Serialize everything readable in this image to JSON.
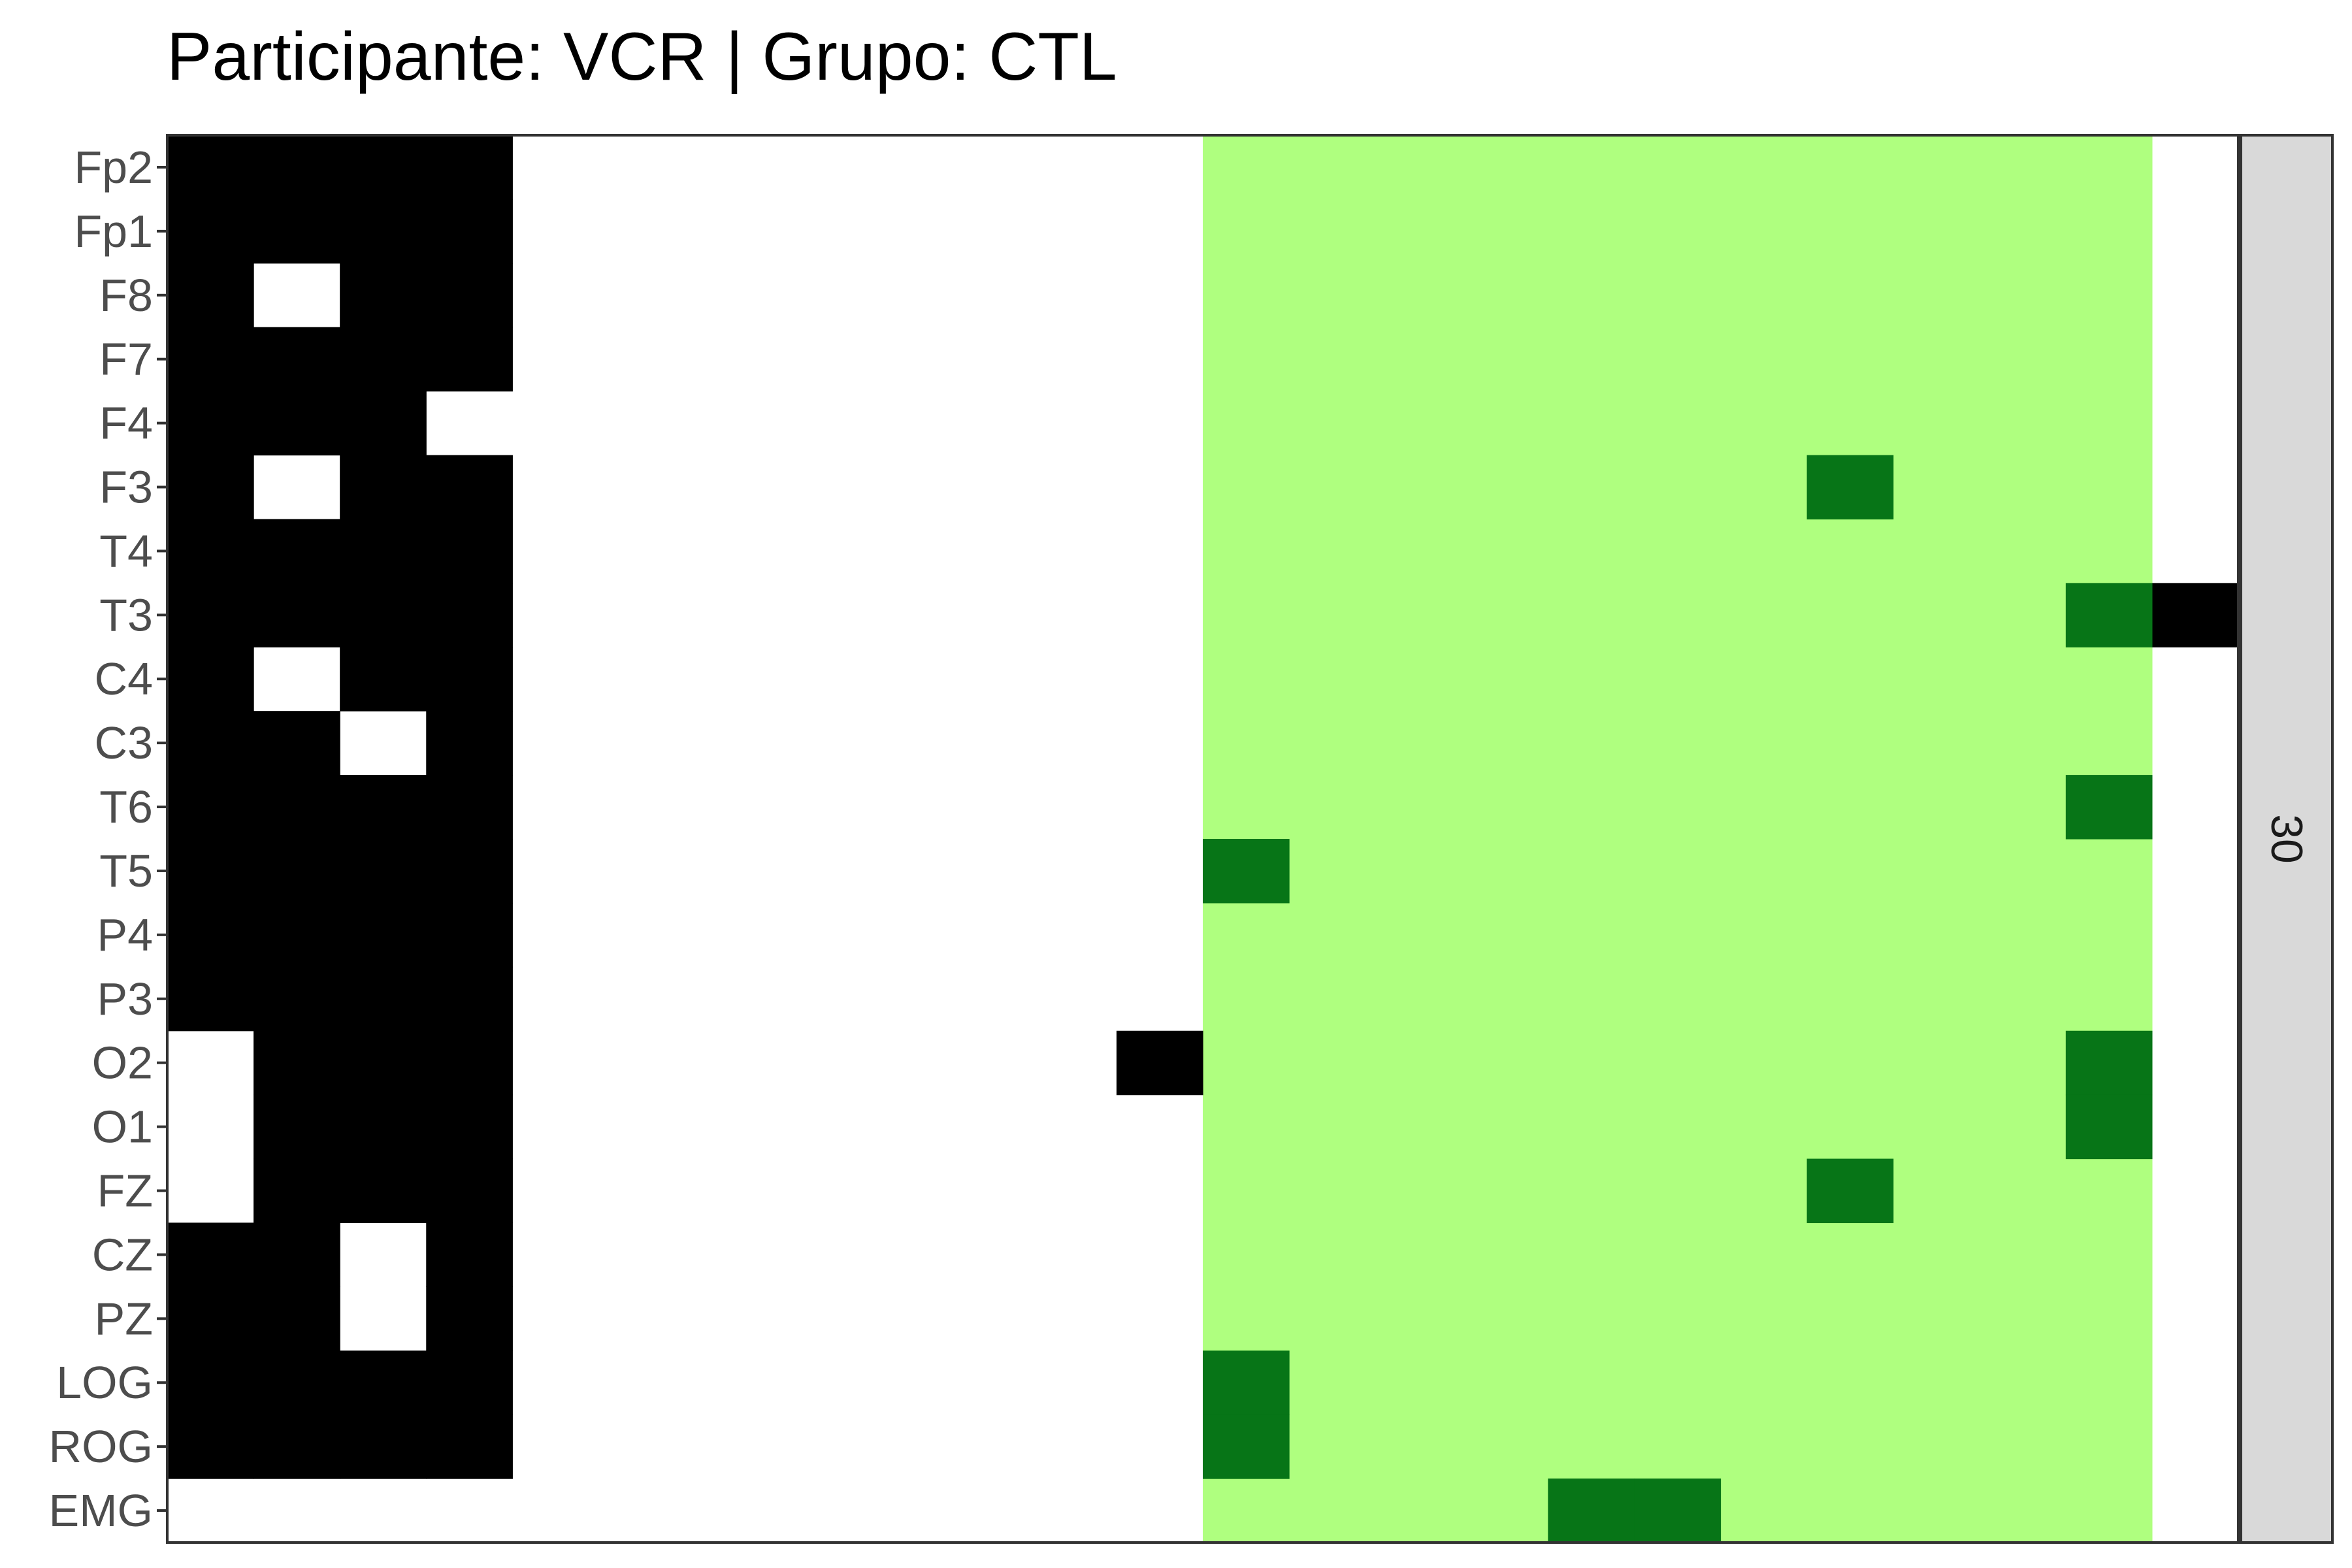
{
  "chart_data": {
    "type": "heatmap",
    "title": "Participante: VCR | Grupo: CTL",
    "facet_label": "30",
    "y_labels": [
      "Fp2",
      "Fp1",
      "F8",
      "F7",
      "F4",
      "F3",
      "T4",
      "T3",
      "C4",
      "C3",
      "T6",
      "T5",
      "P4",
      "P3",
      "O2",
      "O1",
      "FZ",
      "CZ",
      "PZ",
      "LOG",
      "ROG",
      "EMG"
    ],
    "n_columns": 24,
    "colors": {
      "none": "#FFFFFF",
      "black": "#000000",
      "light_green": "#AFFF7F",
      "dark_green": "#077517",
      "strip_fill": "#D9D9D9",
      "panel_border": "#333333"
    },
    "light_green_columns": [
      12,
      22
    ],
    "rows": [
      {
        "label": "Fp2",
        "black": [
          0,
          1,
          2,
          3
        ],
        "dark_green": []
      },
      {
        "label": "Fp1",
        "black": [
          0,
          1,
          2,
          3
        ],
        "dark_green": []
      },
      {
        "label": "F8",
        "black": [
          0,
          2,
          3
        ],
        "dark_green": []
      },
      {
        "label": "F7",
        "black": [
          0,
          1,
          2,
          3
        ],
        "dark_green": []
      },
      {
        "label": "F4",
        "black": [
          0,
          1,
          2
        ],
        "dark_green": []
      },
      {
        "label": "F3",
        "black": [
          0,
          2,
          3
        ],
        "dark_green": [
          19
        ]
      },
      {
        "label": "T4",
        "black": [
          0,
          1,
          2,
          3
        ],
        "dark_green": []
      },
      {
        "label": "T3",
        "black": [
          0,
          1,
          2,
          3,
          23
        ],
        "dark_green": [
          22
        ]
      },
      {
        "label": "C4",
        "black": [
          0,
          2,
          3
        ],
        "dark_green": []
      },
      {
        "label": "C3",
        "black": [
          0,
          1,
          3
        ],
        "dark_green": []
      },
      {
        "label": "T6",
        "black": [
          0,
          1,
          2,
          3
        ],
        "dark_green": [
          22
        ]
      },
      {
        "label": "T5",
        "black": [
          0,
          1,
          2,
          3
        ],
        "dark_green": [
          12
        ]
      },
      {
        "label": "P4",
        "black": [
          0,
          1,
          2,
          3
        ],
        "dark_green": []
      },
      {
        "label": "P3",
        "black": [
          0,
          1,
          2,
          3
        ],
        "dark_green": []
      },
      {
        "label": "O2",
        "black": [
          1,
          2,
          3,
          11
        ],
        "dark_green": [
          22
        ]
      },
      {
        "label": "O1",
        "black": [
          1,
          2,
          3
        ],
        "dark_green": [
          22
        ]
      },
      {
        "label": "FZ",
        "black": [
          1,
          2,
          3
        ],
        "dark_green": [
          19
        ]
      },
      {
        "label": "CZ",
        "black": [
          0,
          1,
          3
        ],
        "dark_green": []
      },
      {
        "label": "PZ",
        "black": [
          0,
          1,
          3
        ],
        "dark_green": []
      },
      {
        "label": "LOG",
        "black": [
          0,
          1,
          2,
          3
        ],
        "dark_green": [
          12
        ]
      },
      {
        "label": "ROG",
        "black": [
          0,
          1,
          2,
          3
        ],
        "dark_green": [
          12
        ]
      },
      {
        "label": "EMG",
        "black": [],
        "dark_green": [
          16,
          17
        ]
      }
    ]
  }
}
